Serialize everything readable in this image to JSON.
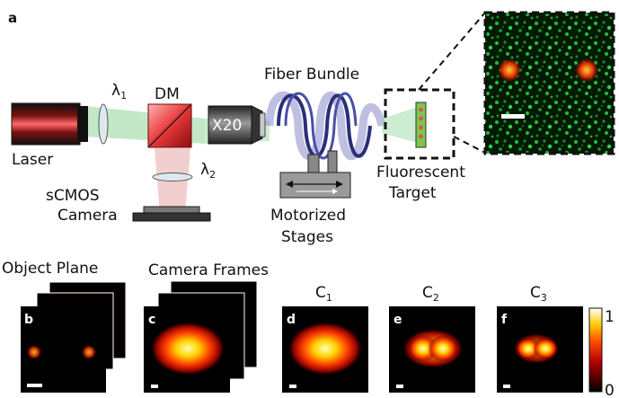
{
  "figure": {
    "panel_a": {
      "letter": "a",
      "labels": {
        "laser": "Laser",
        "lambda1_base": "λ",
        "lambda1_sub": "1",
        "dm": "DM",
        "objective": "X20",
        "lambda2_base": "λ",
        "lambda2_sub": "2",
        "camera_line1": "sCMOS",
        "camera_line2": "Camera",
        "fiber_bundle": "Fiber Bundle",
        "stages_line1": "Motorized",
        "stages_line2": "Stages",
        "target_line1": "Fluorescent",
        "target_line2": "Target"
      }
    },
    "panel_b_row": {
      "object_plane_title": "Object Plane",
      "camera_frames_title": "Camera Frames",
      "panels": [
        {
          "letter": "b",
          "title": ""
        },
        {
          "letter": "c",
          "title": ""
        },
        {
          "letter": "d",
          "title_base": "C",
          "title_sub": "1"
        },
        {
          "letter": "e",
          "title_base": "C",
          "title_sub": "2"
        },
        {
          "letter": "f",
          "title_base": "C",
          "title_sub": "3"
        }
      ],
      "colorbar": {
        "max_label": "1",
        "min_label": "0"
      }
    }
  }
}
